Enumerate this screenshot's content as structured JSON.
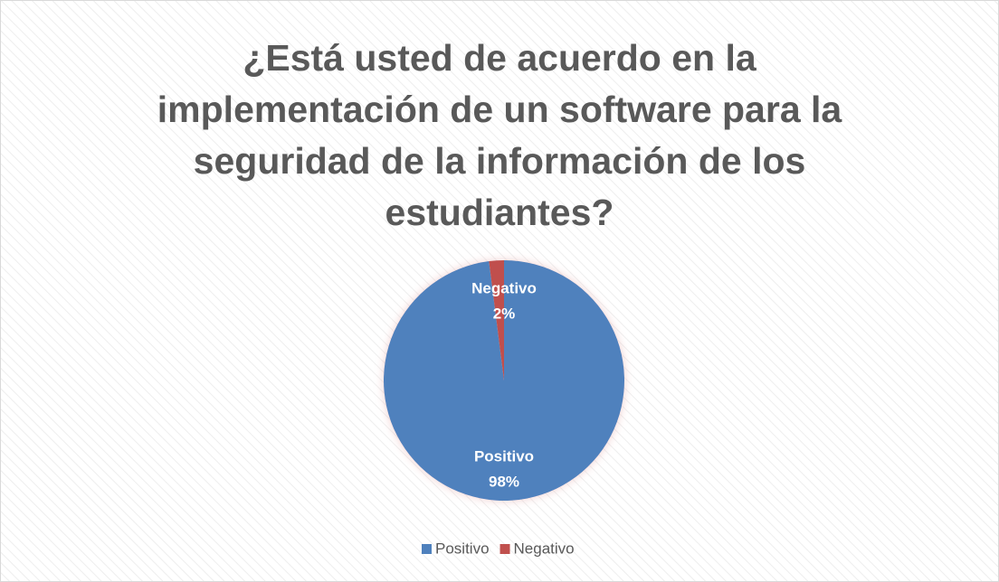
{
  "chart_data": {
    "type": "pie",
    "title": "¿Está usted de acuerdo en la implementación de un software para la seguridad de la información de los estudiantes?",
    "categories": [
      "Positivo",
      "Negativo"
    ],
    "values": [
      98,
      2
    ],
    "value_labels": [
      "98%",
      "2%"
    ],
    "colors": [
      "#4f81bd",
      "#c0504d"
    ],
    "legend": "bottom"
  }
}
